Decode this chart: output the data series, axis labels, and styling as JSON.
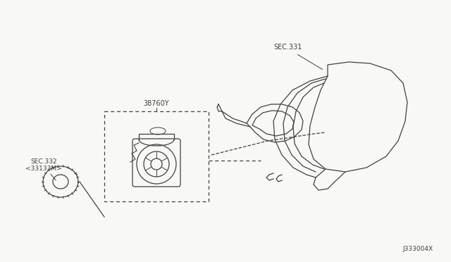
{
  "bg_color": "#f8f8f4",
  "line_color": "#404040",
  "label_sec331": "SEC.331",
  "label_38760Y": "38760Y",
  "label_sec332": "SEC.332\n<33133M>",
  "watermark": "J333004X",
  "fig_width": 6.4,
  "fig_height": 3.72,
  "dpi": 100
}
